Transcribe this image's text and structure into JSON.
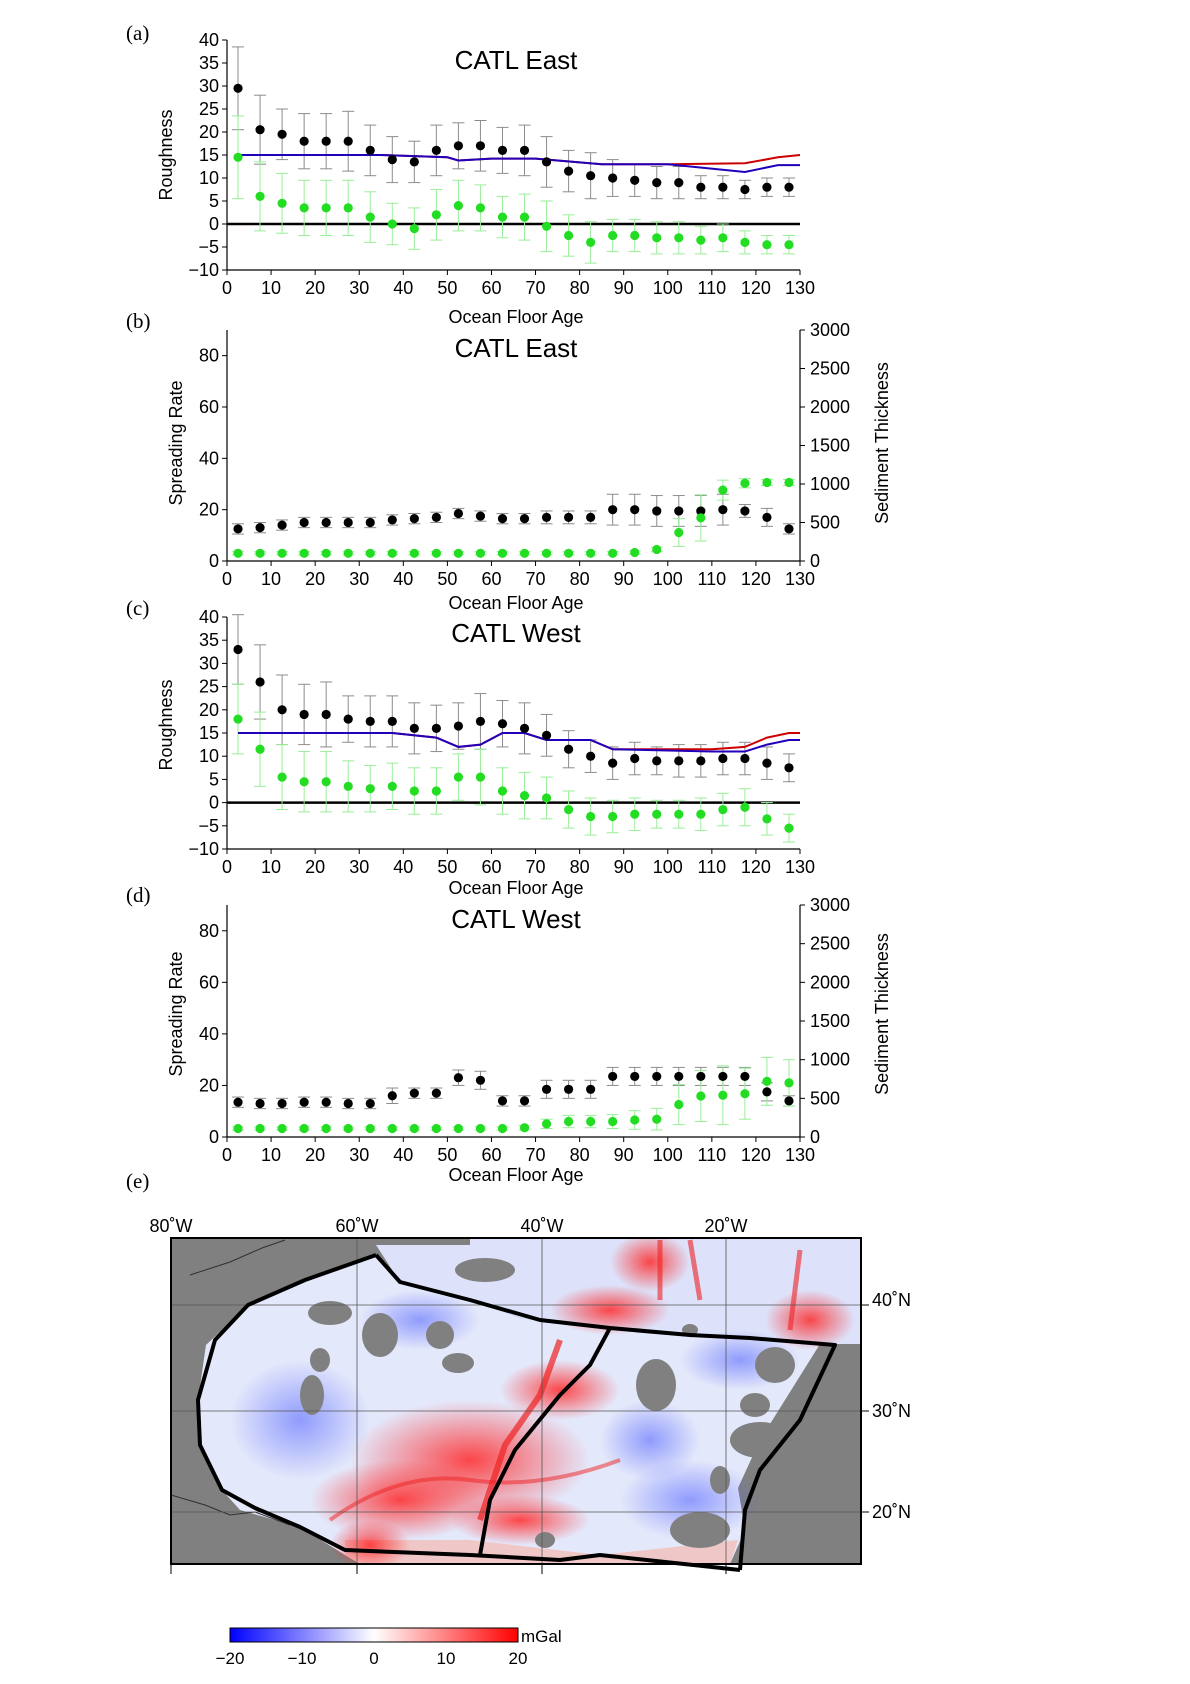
{
  "colors": {
    "black_points": "#000000",
    "green_points": "#22dd22",
    "black_errorbar": "#8c8c8c",
    "green_errorbar": "#99ee99",
    "red_line": "#cc0000",
    "blue_line": "#2200bb",
    "land": "#808080",
    "colorbar_low": "#0000ff",
    "colorbar_mid": "#ffffff",
    "colorbar_high": "#ff0000"
  },
  "panels": {
    "a": {
      "letter": "(a)",
      "title": "CATL East",
      "xlabel": "Ocean Floor Age",
      "ylabel": "Roughness"
    },
    "b": {
      "letter": "(b)",
      "title": "CATL East",
      "xlabel": "Ocean Floor Age",
      "ylabel": "Spreading Rate",
      "ylabel_right": "Sediment Thickness"
    },
    "c": {
      "letter": "(c)",
      "title": "CATL West",
      "xlabel": "Ocean Floor Age",
      "ylabel": "Roughness"
    },
    "d": {
      "letter": "(d)",
      "title": "CATL West",
      "xlabel": "Ocean Floor Age",
      "ylabel": "Spreading Rate",
      "ylabel_right": "Sediment Thickness"
    },
    "e": {
      "letter": "(e)",
      "lon_labels": [
        "80˚W",
        "60˚W",
        "40˚W",
        "20˚W"
      ],
      "lat_labels": [
        "40˚N",
        "30˚N",
        "20˚N"
      ],
      "colorbar": {
        "unit": "mGal",
        "ticks": [
          "−20",
          "−10",
          "0",
          "10",
          "20"
        ],
        "range": [
          -20,
          20
        ]
      }
    }
  },
  "chart_data": [
    {
      "id": "a",
      "type": "scatter",
      "title": "CATL East",
      "xlabel": "Ocean Floor Age",
      "ylabel": "Roughness",
      "xlim": [
        0,
        130
      ],
      "ylim": [
        -10,
        40
      ],
      "xticks": [
        0,
        10,
        20,
        30,
        40,
        50,
        60,
        70,
        80,
        90,
        100,
        110,
        120,
        130
      ],
      "yticks": [
        -10,
        -5,
        0,
        5,
        10,
        15,
        20,
        25,
        30,
        35,
        40
      ],
      "zero_line": true,
      "x": [
        2.5,
        7.5,
        12.5,
        17.5,
        22.5,
        27.5,
        32.5,
        37.5,
        42.5,
        47.5,
        52.5,
        57.5,
        62.5,
        67.5,
        72.5,
        77.5,
        82.5,
        87.5,
        92.5,
        97.5,
        102.5,
        107.5,
        112.5,
        117.5,
        122.5,
        127.5
      ],
      "series": [
        {
          "color": "black",
          "y": [
            29.5,
            20.5,
            19.5,
            18,
            18,
            18,
            16,
            14,
            13.5,
            16,
            17,
            17,
            16,
            16,
            13.5,
            11.5,
            10.5,
            10,
            9.5,
            9,
            9,
            8,
            8,
            7.5,
            8,
            8
          ],
          "err": [
            9,
            7.5,
            5.5,
            6,
            6,
            6.5,
            5.5,
            5,
            4.5,
            5.5,
            5,
            5.5,
            5,
            5.5,
            5.5,
            4.5,
            5,
            4,
            3.5,
            3.5,
            3.5,
            2.5,
            2.5,
            2,
            2,
            2
          ]
        },
        {
          "color": "green",
          "y": [
            14.5,
            6,
            4.5,
            3.5,
            3.5,
            3.5,
            1.5,
            0,
            -1,
            2,
            4,
            3.5,
            1.5,
            1.5,
            -0.5,
            -2.5,
            -4,
            -2.5,
            -2.5,
            -3,
            -3,
            -3.5,
            -3,
            -4,
            -4.5,
            -4.5
          ],
          "err": [
            9,
            7.5,
            6.5,
            6,
            6,
            6,
            5.5,
            4.5,
            4.5,
            5.5,
            5.5,
            5,
            4.5,
            5,
            5.5,
            4.5,
            4.5,
            3.5,
            3.5,
            3.5,
            3.5,
            3,
            3,
            2.5,
            2,
            2
          ]
        }
      ],
      "lines": [
        {
          "color": "red",
          "x": [
            2.5,
            35,
            50,
            52.5,
            60,
            65,
            70,
            85,
            100,
            117.5,
            125,
            130
          ],
          "y": [
            15,
            15,
            14.5,
            13.8,
            14.2,
            14.2,
            14.2,
            13,
            13,
            13.2,
            14.5,
            15
          ]
        },
        {
          "color": "blue",
          "x": [
            2.5,
            35,
            50,
            52.5,
            60,
            65,
            70,
            85,
            100,
            117.5,
            125,
            130
          ],
          "y": [
            15,
            15,
            14.5,
            13.8,
            14.2,
            14.2,
            14.2,
            13,
            13,
            11.3,
            12.8,
            12.8
          ]
        }
      ]
    },
    {
      "id": "b",
      "type": "scatter",
      "title": "CATL East",
      "xlabel": "Ocean Floor Age",
      "ylabel": "Spreading Rate",
      "ylabel_right": "Sediment Thickness",
      "xlim": [
        0,
        130
      ],
      "ylim": [
        0,
        90
      ],
      "ylim_right": [
        0,
        3000
      ],
      "xticks": [
        0,
        10,
        20,
        30,
        40,
        50,
        60,
        70,
        80,
        90,
        100,
        110,
        120,
        130
      ],
      "yticks": [
        0,
        20,
        40,
        60,
        80
      ],
      "yticks_right": [
        0,
        500,
        1000,
        1500,
        2000,
        2500,
        3000
      ],
      "x": [
        2.5,
        7.5,
        12.5,
        17.5,
        22.5,
        27.5,
        32.5,
        37.5,
        42.5,
        47.5,
        52.5,
        57.5,
        62.5,
        67.5,
        72.5,
        77.5,
        82.5,
        87.5,
        92.5,
        97.5,
        102.5,
        107.5,
        112.5,
        117.5,
        122.5,
        127.5
      ],
      "series": [
        {
          "color": "black",
          "axis": "left",
          "y": [
            12.5,
            13,
            14,
            15,
            15,
            15,
            15,
            16,
            16.5,
            17,
            18.5,
            17.5,
            16.5,
            16.5,
            17,
            17,
            17,
            20,
            20,
            19.5,
            19.5,
            19.5,
            20,
            19.5,
            17,
            12.5
          ],
          "err": [
            2,
            2,
            2,
            2,
            2,
            2,
            2,
            2,
            2,
            2,
            2,
            2,
            2,
            2,
            2.5,
            2.5,
            2.5,
            6,
            6,
            6,
            6,
            6,
            6,
            2.5,
            3.5,
            2
          ]
        },
        {
          "color": "green",
          "axis": "right",
          "y": [
            100,
            100,
            100,
            100,
            100,
            100,
            100,
            100,
            100,
            100,
            100,
            100,
            100,
            100,
            100,
            100,
            100,
            100,
            110,
            150,
            370,
            560,
            920,
            1010,
            1020,
            1020
          ],
          "err": [
            20,
            20,
            20,
            20,
            20,
            20,
            20,
            20,
            20,
            20,
            20,
            20,
            20,
            20,
            20,
            20,
            20,
            20,
            20,
            30,
            180,
            300,
            130,
            60,
            40,
            40
          ]
        }
      ]
    },
    {
      "id": "c",
      "type": "scatter",
      "title": "CATL West",
      "xlabel": "Ocean Floor Age",
      "ylabel": "Roughness",
      "xlim": [
        0,
        130
      ],
      "ylim": [
        -10,
        40
      ],
      "xticks": [
        0,
        10,
        20,
        30,
        40,
        50,
        60,
        70,
        80,
        90,
        100,
        110,
        120,
        130
      ],
      "yticks": [
        -10,
        -5,
        0,
        5,
        10,
        15,
        20,
        25,
        30,
        35,
        40
      ],
      "zero_line": true,
      "x": [
        2.5,
        7.5,
        12.5,
        17.5,
        22.5,
        27.5,
        32.5,
        37.5,
        42.5,
        47.5,
        52.5,
        57.5,
        62.5,
        67.5,
        72.5,
        77.5,
        82.5,
        87.5,
        92.5,
        97.5,
        102.5,
        107.5,
        112.5,
        117.5,
        122.5,
        127.5
      ],
      "series": [
        {
          "color": "black",
          "y": [
            33,
            26,
            20,
            19,
            19,
            18,
            17.5,
            17.5,
            16,
            16,
            16.5,
            17.5,
            17,
            16,
            14.5,
            11.5,
            10,
            8.5,
            9.5,
            9,
            9,
            9,
            9.5,
            9.5,
            8.5,
            7.5
          ],
          "err": [
            7.5,
            8,
            7.5,
            6.5,
            7,
            5,
            5.5,
            5.5,
            5.5,
            5,
            5,
            6,
            5,
            5.5,
            4.5,
            4,
            3.5,
            3.5,
            3.5,
            3,
            3.5,
            3.5,
            3.5,
            3.5,
            3.5,
            3
          ]
        },
        {
          "color": "green",
          "y": [
            18,
            11.5,
            5.5,
            4.5,
            4.5,
            3.5,
            3,
            3.5,
            2.5,
            2.5,
            5.5,
            5.5,
            2.5,
            1.5,
            1,
            -1.5,
            -3,
            -3,
            -2.5,
            -2.5,
            -2.5,
            -2.5,
            -1.5,
            -1,
            -3.5,
            -5.5
          ],
          "err": [
            7.5,
            8,
            7,
            6.5,
            6.5,
            5.5,
            5,
            5,
            5,
            5,
            5,
            6,
            5,
            5,
            4.5,
            4,
            4,
            3.5,
            3.5,
            3,
            3,
            3.5,
            3.5,
            4,
            3.5,
            3
          ]
        }
      ],
      "lines": [
        {
          "color": "red",
          "x": [
            2.5,
            37.5,
            47.5,
            52.5,
            57.5,
            62.5,
            67.5,
            72.5,
            82.5,
            87.5,
            110,
            117.5,
            122.5,
            127.5,
            130
          ],
          "y": [
            15,
            15,
            14,
            12,
            12.5,
            15,
            15,
            13.5,
            13.5,
            11.5,
            11.5,
            12,
            14,
            15,
            15
          ]
        },
        {
          "color": "blue",
          "x": [
            2.5,
            37.5,
            47.5,
            52.5,
            57.5,
            62.5,
            67.5,
            72.5,
            82.5,
            87.5,
            110,
            117.5,
            122.5,
            127.5,
            130
          ],
          "y": [
            15,
            15,
            14,
            12,
            12.5,
            15,
            15,
            13.5,
            13.5,
            11.5,
            11,
            11,
            12.5,
            13.5,
            13.5
          ]
        }
      ]
    },
    {
      "id": "d",
      "type": "scatter",
      "title": "CATL West",
      "xlabel": "Ocean Floor Age",
      "ylabel": "Spreading Rate",
      "ylabel_right": "Sediment Thickness",
      "xlim": [
        0,
        130
      ],
      "ylim": [
        0,
        90
      ],
      "ylim_right": [
        0,
        3000
      ],
      "xticks": [
        0,
        10,
        20,
        30,
        40,
        50,
        60,
        70,
        80,
        90,
        100,
        110,
        120,
        130
      ],
      "yticks": [
        0,
        20,
        40,
        60,
        80
      ],
      "yticks_right": [
        0,
        500,
        1000,
        1500,
        2000,
        2500,
        3000
      ],
      "x": [
        2.5,
        7.5,
        12.5,
        17.5,
        22.5,
        27.5,
        32.5,
        37.5,
        42.5,
        47.5,
        52.5,
        57.5,
        62.5,
        67.5,
        72.5,
        77.5,
        82.5,
        87.5,
        92.5,
        97.5,
        102.5,
        107.5,
        112.5,
        117.5,
        122.5,
        127.5
      ],
      "series": [
        {
          "color": "black",
          "axis": "left",
          "y": [
            13.5,
            13,
            13,
            13.5,
            13.5,
            13,
            13,
            16,
            17,
            17,
            23,
            22,
            14,
            14,
            18.5,
            18.5,
            18.5,
            23.5,
            23.5,
            23.5,
            23.5,
            23.5,
            23.5,
            23.5,
            17.5,
            14
          ],
          "err": [
            2,
            2,
            2,
            2,
            2,
            2,
            2,
            3,
            2,
            2,
            3,
            3.5,
            2,
            2,
            3.5,
            3.5,
            3.5,
            3.5,
            3.5,
            3.5,
            3.5,
            3.5,
            3.5,
            3.5,
            3.5,
            2
          ]
        },
        {
          "color": "green",
          "axis": "right",
          "y": [
            110,
            110,
            110,
            110,
            110,
            110,
            110,
            110,
            110,
            110,
            110,
            110,
            110,
            120,
            170,
            200,
            200,
            200,
            220,
            230,
            420,
            530,
            540,
            560,
            720,
            700
          ],
          "err": [
            20,
            20,
            20,
            20,
            20,
            20,
            20,
            20,
            20,
            20,
            20,
            20,
            20,
            30,
            60,
            80,
            80,
            90,
            120,
            140,
            260,
            330,
            380,
            330,
            310,
            300
          ]
        }
      ]
    }
  ]
}
